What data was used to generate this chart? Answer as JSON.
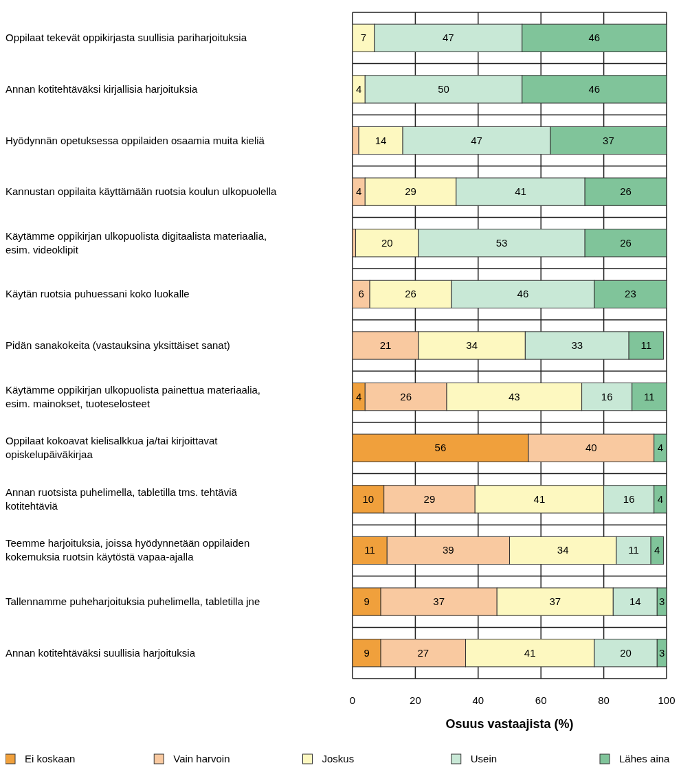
{
  "chart_data": {
    "type": "bar",
    "orientation": "horizontal",
    "stacked": true,
    "xlabel": "Osuus vastaajista (%)",
    "categories": [
      "Oppilaat tekevät oppikirjasta suullisia pariharjoituksia",
      "Annan kotitehtäväksi kirjallisia harjoituksia",
      "Hyödynnän opetuksessa oppilaiden osaamia muita kieliä",
      "Kannustan oppilaita käyttämään ruotsia koulun ulkopuolella",
      "Käytämme oppikirjan ulkopuolista digitaalista materiaalia, esim. videoklipit",
      "Käytän ruotsia puhuessani koko luokalle",
      "Pidän sanakokeita (vastauksina yksittäiset sanat)",
      "Käytämme oppikirjan ulkopuolista painettua materiaalia, esim. mainokset, tuoteselosteet",
      "Oppilaat kokoavat kielisalkkua ja/tai kirjoittavat opiskelupäiväkirjaa",
      "Annan ruotsista puhelimella, tabletilla tms. tehtäviä kotitehtäviä",
      "Teemme harjoituksia, joissa hyödynnetään oppilaiden kokemuksia ruotsin käytöstä vapaa-ajalla",
      "Tallennamme puheharjoituksia puhelimella, tabletilla jne",
      "Annan kotitehtäväksi suullisia harjoituksia"
    ],
    "series": [
      {
        "name": "Ei koskaan",
        "color": "#f0a03c",
        "values": [
          0,
          0,
          0,
          0,
          0,
          0,
          0,
          4,
          56,
          10,
          11,
          9,
          9
        ],
        "value_labels": [
          null,
          null,
          null,
          null,
          null,
          null,
          null,
          "4",
          "56",
          "10",
          "11",
          "9",
          "9"
        ]
      },
      {
        "name": "Vain harvoin",
        "color": "#f9c9a0",
        "values": [
          0,
          0,
          2,
          4,
          1,
          5.5,
          21,
          26,
          40,
          29,
          39,
          37,
          27
        ],
        "value_labels": [
          null,
          null,
          null,
          "4",
          null,
          "6",
          "21",
          "26",
          "40",
          "29",
          "39",
          "37",
          "27"
        ]
      },
      {
        "name": "Joskus",
        "color": "#fdf8c0",
        "values": [
          7,
          4,
          14,
          29,
          20,
          26,
          34,
          43,
          0,
          41,
          34,
          37,
          41
        ],
        "value_labels": [
          "7",
          "4",
          "14",
          "29",
          "20",
          "26",
          "34",
          "43",
          null,
          "41",
          "34",
          "37",
          "41"
        ]
      },
      {
        "name": "Usein",
        "color": "#c8e8d6",
        "values": [
          47,
          50,
          47,
          41,
          53,
          45.5,
          33,
          16,
          0,
          16,
          11,
          14,
          20
        ],
        "value_labels": [
          "47",
          "50",
          "47",
          "41",
          "53",
          "46",
          "33",
          "16",
          null,
          "16",
          "11",
          "14",
          "20"
        ]
      },
      {
        "name": "Lähes aina",
        "color": "#80c49a",
        "values": [
          46,
          46,
          37,
          26,
          26,
          23,
          11,
          11,
          4,
          4,
          4,
          3,
          3
        ],
        "value_labels": [
          "46",
          "46",
          "37",
          "26",
          "26",
          "23",
          "11",
          "11",
          "4",
          "4",
          "4",
          "3",
          "3"
        ]
      }
    ],
    "xlim": [
      0,
      100
    ],
    "xticks": [
      0,
      20,
      40,
      60,
      80,
      100
    ],
    "grid": true,
    "legend": "bottom"
  }
}
